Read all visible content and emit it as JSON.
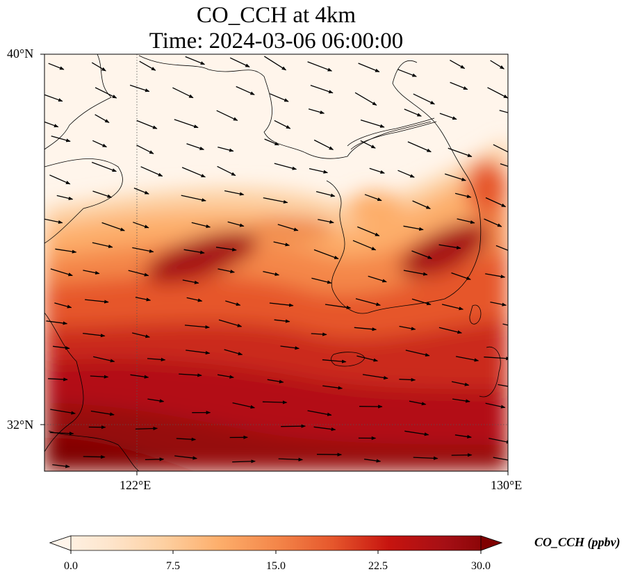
{
  "title": {
    "line1": "CO_CCH at 4km",
    "line2": "Time: 2024-03-06 06:00:00"
  },
  "map": {
    "lat_labels": [
      "40°N",
      "32°N"
    ],
    "lon_labels": [
      "122°E",
      "130°E"
    ],
    "extent": {
      "lon_min": 120,
      "lon_max": 130,
      "lat_min": 31,
      "lat_max": 40
    }
  },
  "colorbar": {
    "label": "CO_CCH (ppbv)",
    "ticks": [
      "0.0",
      "7.5",
      "15.0",
      "22.5",
      "30.0"
    ],
    "vmin": 0,
    "vmax": 30,
    "colors": [
      "#fff5eb",
      "#fee6ce",
      "#fdd0a2",
      "#fdae6b",
      "#f4874a",
      "#e6572c",
      "#c7140f",
      "#a50f15",
      "#7f0000"
    ]
  }
}
